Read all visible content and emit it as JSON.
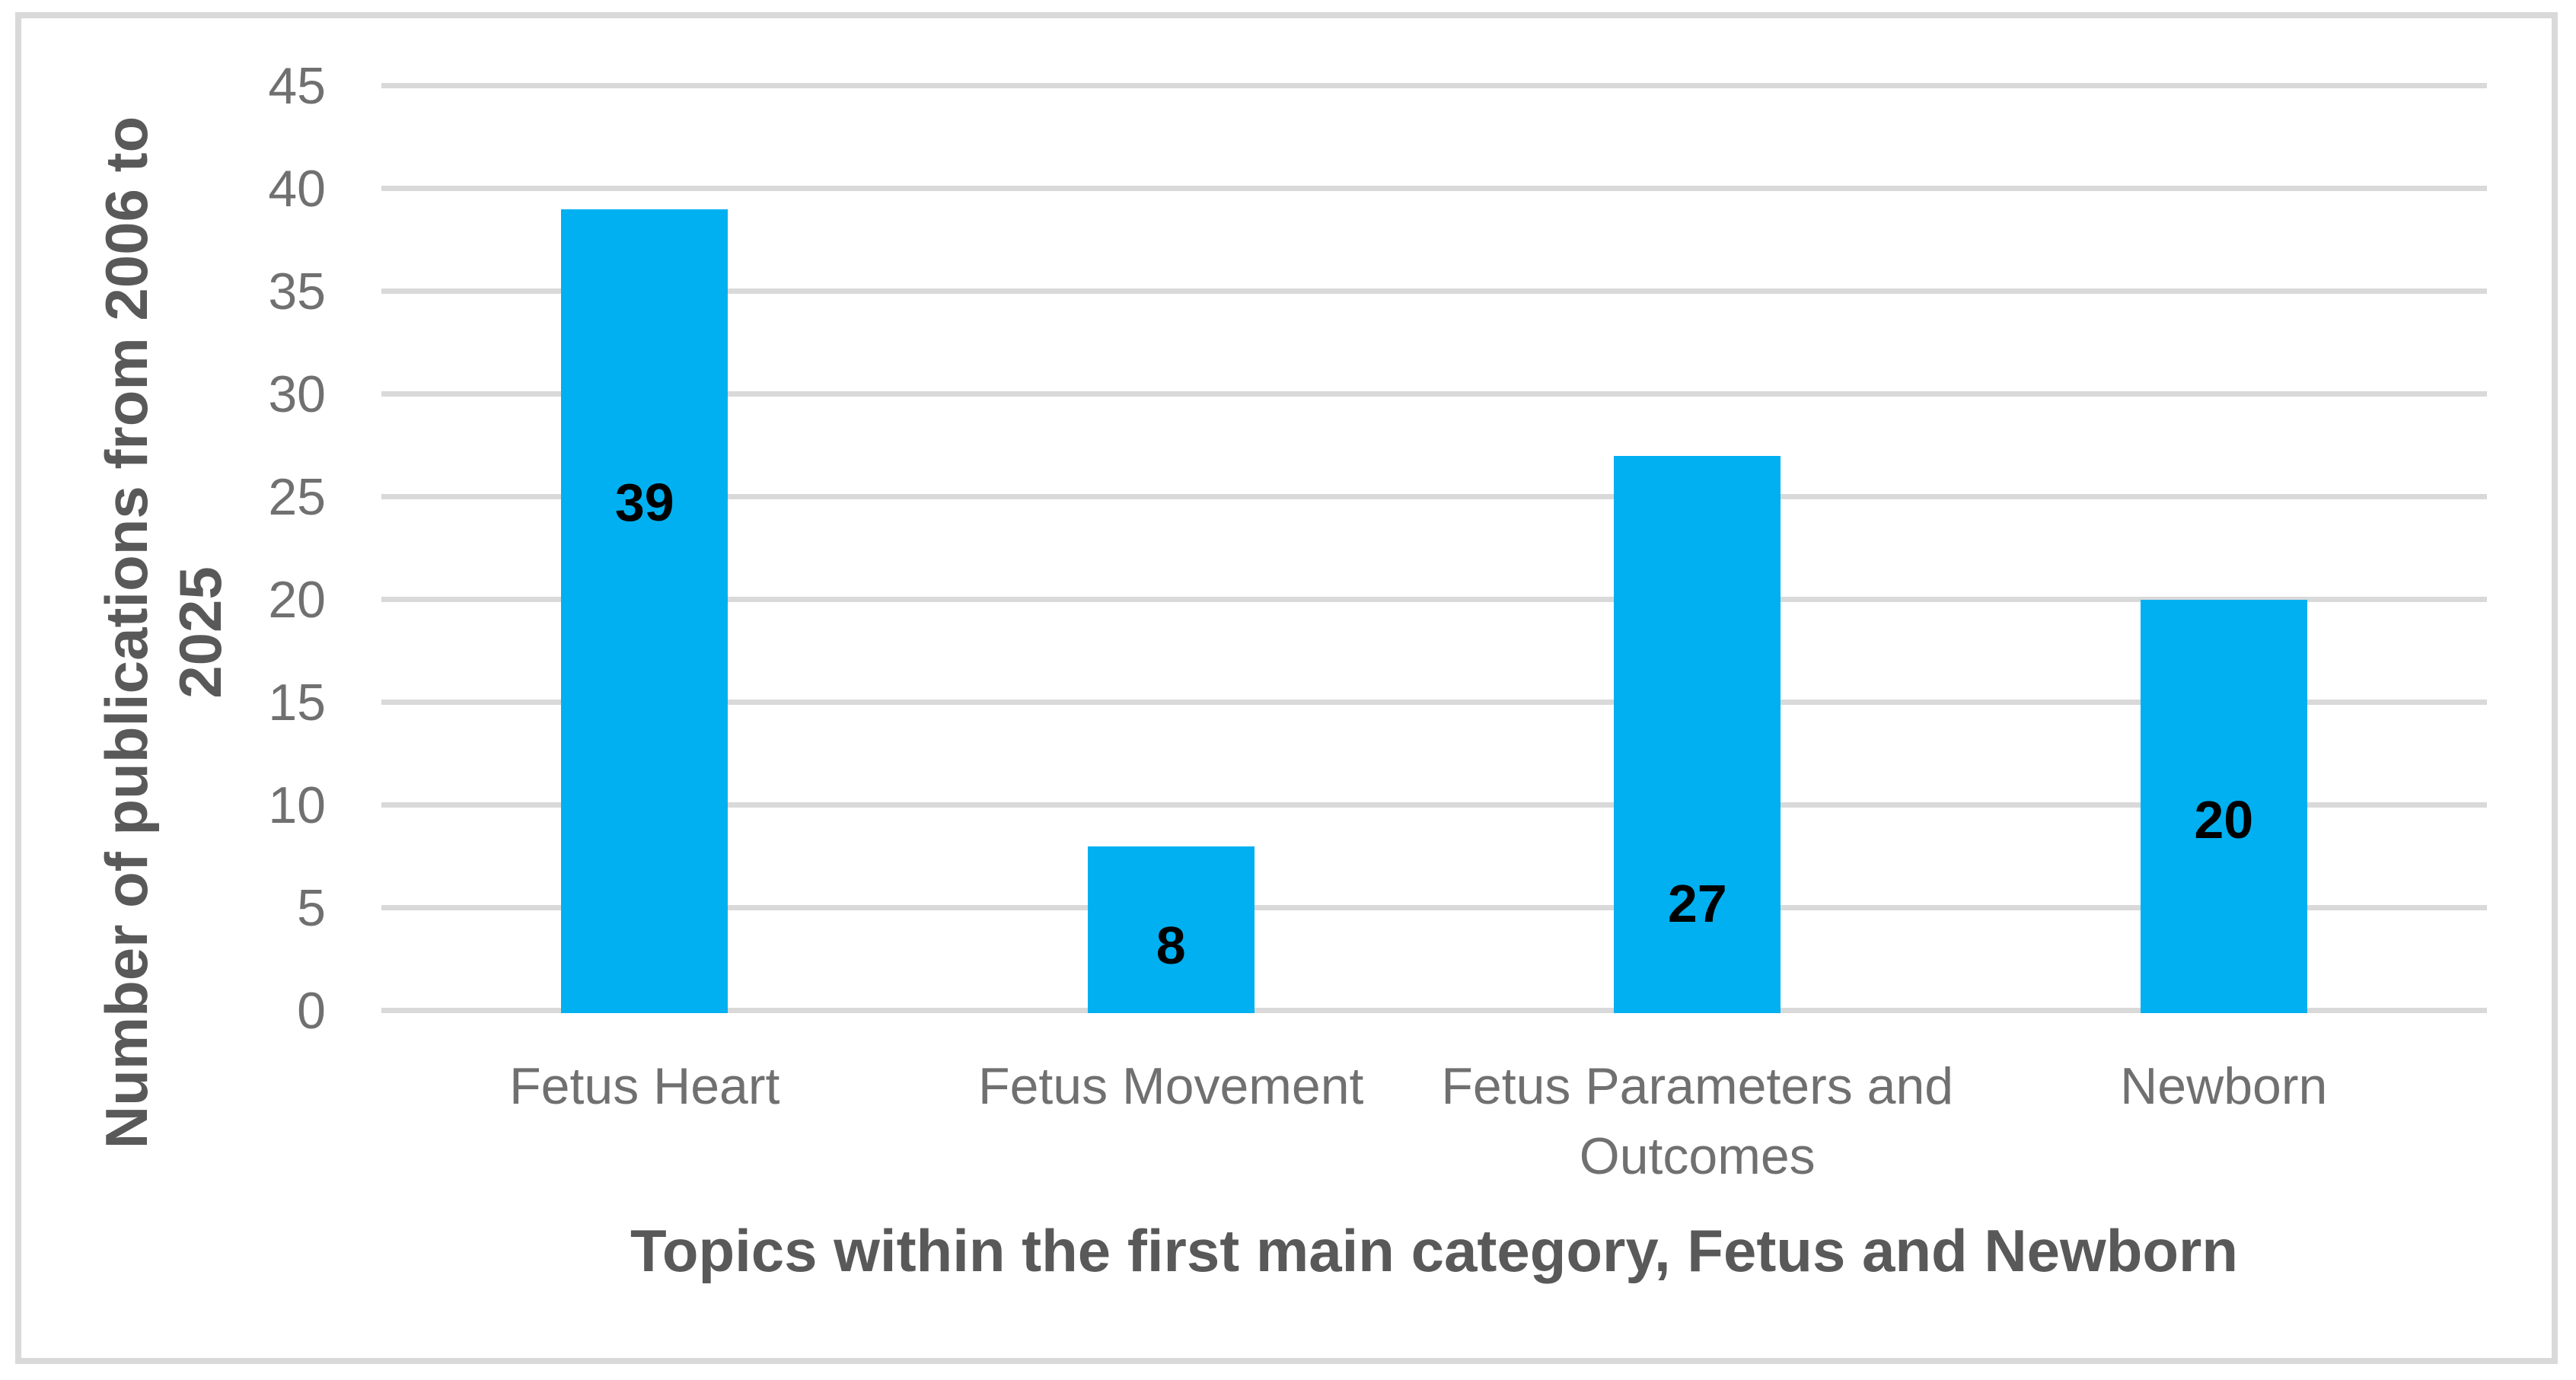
{
  "chart_data": {
    "type": "bar",
    "title": "",
    "categories": [
      "Fetus Heart",
      "Fetus Movement",
      "Fetus Parameters and Outcomes",
      "Newborn"
    ],
    "values": [
      39,
      8,
      27,
      20
    ],
    "data_labels": [
      "39",
      "8",
      "27",
      "20"
    ],
    "xlabel": "Topics within the first main category, Fetus and Newborn",
    "ylabel": "Number of publications from 2006 to 2025",
    "ylabel_lines": [
      "Number of publications from 2006 to",
      "2025"
    ],
    "yticks": [
      0,
      5,
      10,
      15,
      20,
      25,
      30,
      35,
      40,
      45
    ],
    "ylim": [
      0,
      45
    ],
    "grid": true,
    "legend": false,
    "colors": {
      "bar_fill": "#00b0f0",
      "gridline": "#d9d9d9",
      "figure_border": "#d9d9d9",
      "tick_text": "#707070",
      "title_text": "#595959",
      "data_label_text": "#000000",
      "background": "#ffffff"
    }
  }
}
